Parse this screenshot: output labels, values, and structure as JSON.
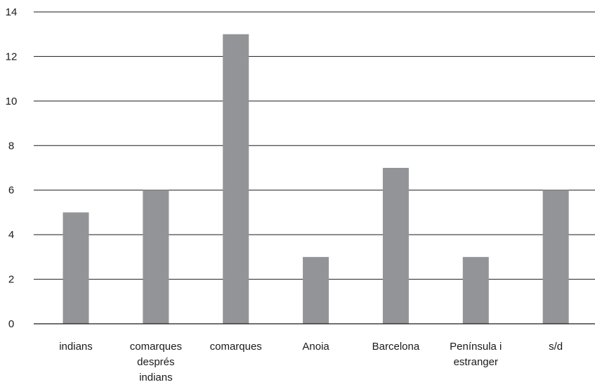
{
  "chart_data": {
    "type": "bar",
    "title": "",
    "xlabel": "",
    "ylabel": "",
    "categories": [
      [
        "indians"
      ],
      [
        "comarques",
        "després",
        "indians"
      ],
      [
        "comarques"
      ],
      [
        "Anoia"
      ],
      [
        "Barcelona"
      ],
      [
        "Península i",
        "estranger"
      ],
      [
        "s/d"
      ]
    ],
    "values": [
      5,
      6,
      13,
      3,
      7,
      3,
      6
    ],
    "ylim": [
      0,
      14
    ],
    "yticks": [
      0,
      2,
      4,
      6,
      8,
      10,
      12,
      14
    ],
    "grid": true,
    "legend": "none",
    "colors": {
      "bar": "#939497",
      "gridline": "#1a1a1a",
      "text": "#1a1a1a"
    }
  }
}
